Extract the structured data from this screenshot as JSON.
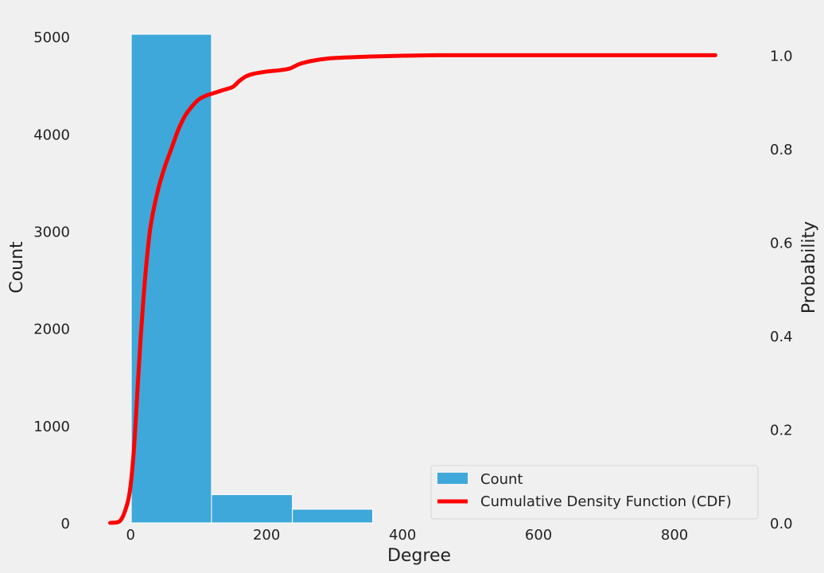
{
  "chart_data": {
    "type": "bar",
    "title": "",
    "xlabel": "Degree",
    "ylabel": "Count",
    "y2label": "Probability",
    "xlim": [
      -40,
      890
    ],
    "ylim": [
      0,
      5050
    ],
    "y2lim": [
      0,
      1.05
    ],
    "grid": false,
    "x_ticks": [
      0,
      200,
      400,
      600,
      800
    ],
    "y_ticks": [
      0,
      1000,
      2000,
      3000,
      4000,
      5000
    ],
    "y2_ticks": [
      0.0,
      0.2,
      0.4,
      0.6,
      0.8,
      1.0
    ],
    "x_tick_labels": [
      "0",
      "200",
      "400",
      "600",
      "800"
    ],
    "y_tick_labels": [
      "0",
      "1000",
      "2000",
      "3000",
      "4000",
      "5000"
    ],
    "y2_tick_labels": [
      "0.0",
      "0.2",
      "0.4",
      "0.6",
      "0.8",
      "1.0"
    ],
    "legend": {
      "position": "lower-right",
      "entries": [
        "Count",
        "Cumulative Density Function (CDF)"
      ]
    },
    "colors": {
      "bar": "#3ea8da",
      "line": "#ff0000",
      "background": "#f0f0f0"
    },
    "histogram": {
      "name": "Count",
      "bins": [
        {
          "start": 1,
          "end": 119,
          "count": 5025
        },
        {
          "start": 119,
          "end": 238,
          "count": 290
        },
        {
          "start": 238,
          "end": 356,
          "count": 140
        }
      ]
    },
    "line": {
      "name": "Cumulative Density Function (CDF)",
      "x": [
        -30,
        -15,
        -5,
        0,
        5,
        10,
        15,
        20,
        25,
        30,
        40,
        50,
        60,
        70,
        80,
        90,
        100,
        110,
        120,
        135,
        150,
        160,
        170,
        180,
        200,
        220,
        235,
        250,
        275,
        300,
        350,
        400,
        450,
        500,
        600,
        700,
        800,
        860
      ],
      "y": [
        0.0,
        0.005,
        0.04,
        0.08,
        0.16,
        0.28,
        0.4,
        0.5,
        0.58,
        0.64,
        0.71,
        0.76,
        0.8,
        0.84,
        0.87,
        0.89,
        0.905,
        0.913,
        0.918,
        0.925,
        0.932,
        0.945,
        0.955,
        0.96,
        0.965,
        0.968,
        0.972,
        0.982,
        0.99,
        0.994,
        0.997,
        0.999,
        1.0,
        1.0,
        1.0,
        1.0,
        1.0,
        1.0
      ]
    }
  }
}
